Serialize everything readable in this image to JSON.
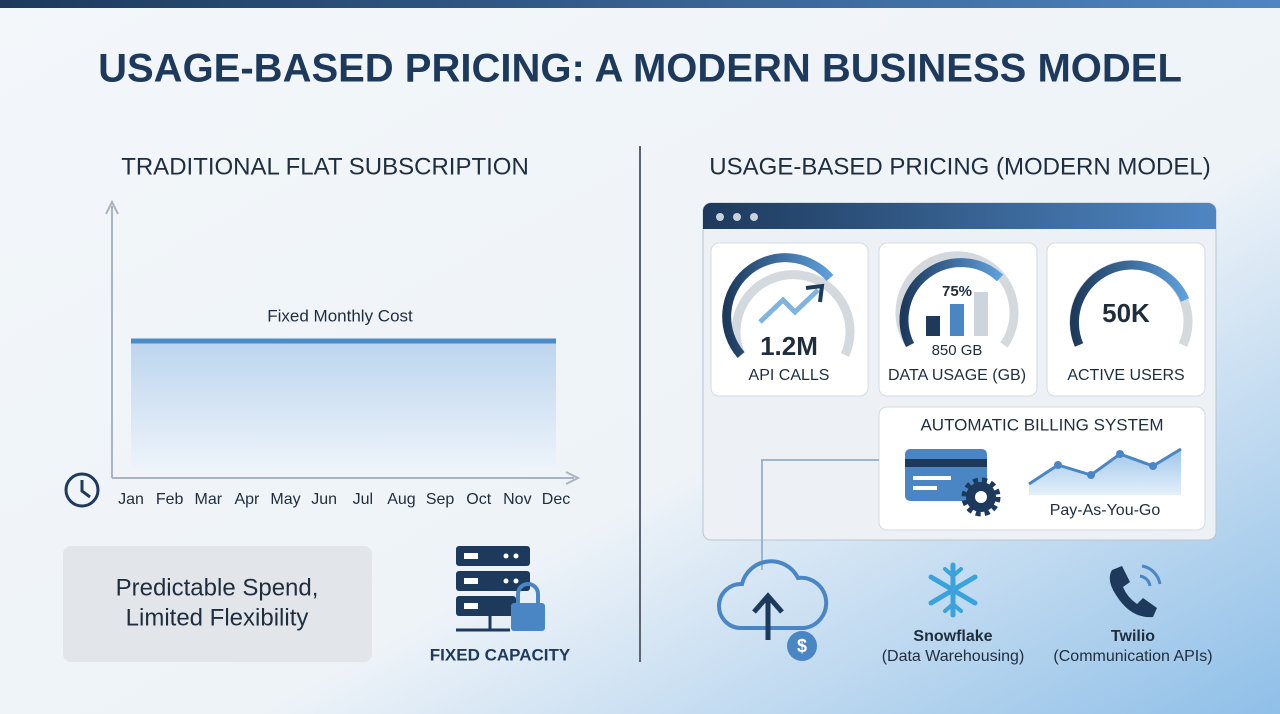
{
  "title": "USAGE-BASED PRICING: A MODERN BUSINESS MODEL",
  "left": {
    "heading": "TRADITIONAL FLAT SUBSCRIPTION",
    "line_label": "Fixed Monthly Cost",
    "months": [
      "Jan",
      "Feb",
      "Mar",
      "Apr",
      "May",
      "Jun",
      "Jul",
      "Aug",
      "Sep",
      "Oct",
      "Nov",
      "Dec"
    ],
    "callout": [
      "Predictable Spend,",
      "Limited Flexibility"
    ],
    "capacity_label": "FIXED CAPACITY"
  },
  "right": {
    "heading": "USAGE-BASED PRICING (MODERN MODEL)",
    "metrics": [
      {
        "value": "1.2M",
        "label": "API CALLS"
      },
      {
        "percent": "75%",
        "value": "850 GB",
        "label": "DATA USAGE (GB)"
      },
      {
        "value": "50K",
        "label": "ACTIVE USERS"
      }
    ],
    "billing": {
      "title": "AUTOMATIC BILLING SYSTEM",
      "label": "Pay-As-You-Go"
    },
    "examples": [
      {
        "name": "Snowflake",
        "desc": "(Data Warehousing)"
      },
      {
        "name": "Twilio",
        "desc": "(Communication APIs)"
      }
    ]
  }
}
